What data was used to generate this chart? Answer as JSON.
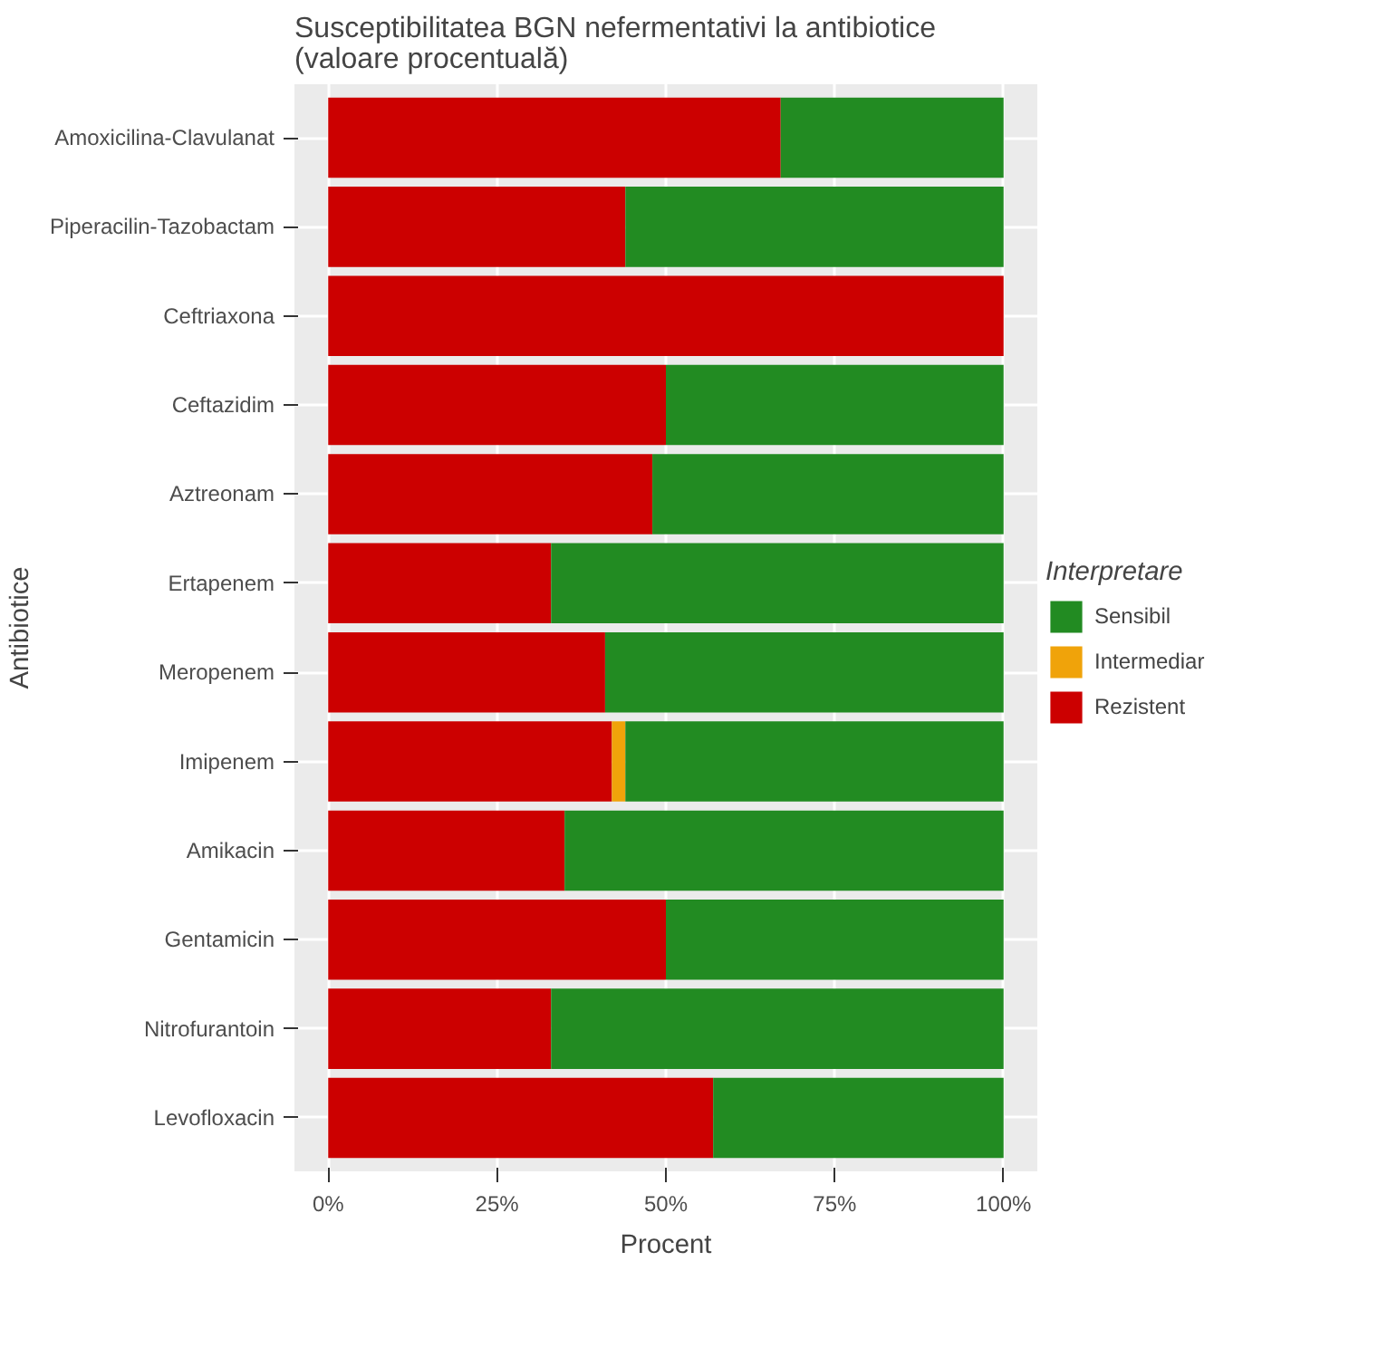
{
  "chart_data": {
    "type": "bar",
    "orientation": "horizontal",
    "stacked": true,
    "title": "Susceptibilitatea BGN nefermentativi la antibiotice\n(valoare procentuală)",
    "xlabel": "Procent",
    "ylabel": "Antibiotice",
    "legend_title": "Interpretare",
    "legend": "right",
    "grid": true,
    "categories": [
      "Amoxicilina-Clavulanat",
      "Piperacilin-Tazobactam",
      "Ceftriaxona",
      "Ceftazidim",
      "Aztreonam",
      "Ertapenem",
      "Meropenem",
      "Imipenem",
      "Amikacin",
      "Gentamicin",
      "Nitrofurantoin",
      "Levofloxacin"
    ],
    "series": [
      {
        "name": "Rezistent",
        "color": "#cc0000",
        "values": [
          67,
          44,
          100,
          50,
          48,
          33,
          41,
          42,
          35,
          50,
          33,
          57
        ]
      },
      {
        "name": "Intermediar",
        "color": "#f0a30a",
        "values": [
          0,
          0,
          0,
          0,
          0,
          0,
          0,
          2,
          0,
          0,
          0,
          0
        ]
      },
      {
        "name": "Sensibil",
        "color": "#228b22",
        "values": [
          33,
          56,
          0,
          50,
          52,
          67,
          59,
          56,
          65,
          50,
          67,
          43
        ]
      }
    ],
    "xlim": [
      -5,
      105
    ],
    "xticks": [
      {
        "value": 0,
        "label": "0%"
      },
      {
        "value": 25,
        "label": "25%"
      },
      {
        "value": 50,
        "label": "50%"
      },
      {
        "value": 75,
        "label": "75%"
      },
      {
        "value": 100,
        "label": "100%"
      }
    ]
  }
}
